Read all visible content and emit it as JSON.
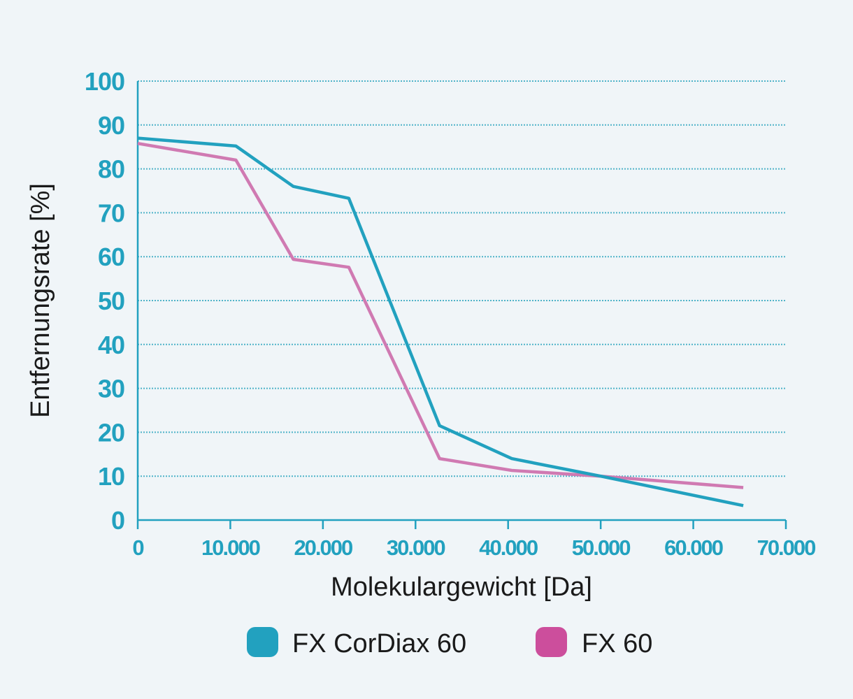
{
  "chart_data": {
    "type": "line",
    "xlabel": "Molekulargewicht [Da]",
    "ylabel": "Entfernungsrate [%]",
    "xlim": [
      0,
      70000
    ],
    "ylim": [
      0,
      100
    ],
    "xticks": [
      0,
      10000,
      20000,
      30000,
      40000,
      50000,
      60000,
      70000
    ],
    "xtick_labels": [
      "0",
      "10.000",
      "20.000",
      "30.000",
      "40.000",
      "50.000",
      "60.000",
      "70.000"
    ],
    "yticks": [
      0,
      10,
      20,
      30,
      40,
      50,
      60,
      70,
      80,
      90,
      100
    ],
    "ytick_labels": [
      "0",
      "10",
      "20",
      "30",
      "40",
      "50",
      "60",
      "70",
      "80",
      "90",
      "100"
    ],
    "grid": "horizontal-dotted",
    "legend_position": "bottom",
    "series": [
      {
        "name": "FX CorDiax 60",
        "color": "#22a1bf",
        "points": [
          {
            "x": 0,
            "y": 87
          },
          {
            "x": 10600,
            "y": 85.2
          },
          {
            "x": 16800,
            "y": 76
          },
          {
            "x": 22800,
            "y": 73.3
          },
          {
            "x": 32600,
            "y": 21.5
          },
          {
            "x": 40400,
            "y": 14
          },
          {
            "x": 50000,
            "y": 10
          },
          {
            "x": 65400,
            "y": 3.3
          }
        ]
      },
      {
        "name": "FX 60",
        "color": "#cc4e9c",
        "points": [
          {
            "x": 0,
            "y": 85.8
          },
          {
            "x": 10600,
            "y": 82
          },
          {
            "x": 16800,
            "y": 59.4
          },
          {
            "x": 22800,
            "y": 57.6
          },
          {
            "x": 32600,
            "y": 14
          },
          {
            "x": 40400,
            "y": 11.3
          },
          {
            "x": 50000,
            "y": 10
          },
          {
            "x": 65400,
            "y": 7.4
          }
        ]
      }
    ]
  },
  "style": {
    "tick_color": "#22a1bf",
    "axis_color": "#22a1bf",
    "grid_color": "#4fb3c8",
    "background": "#f0f5f8",
    "fx60_line_color": "#d07ab2"
  }
}
